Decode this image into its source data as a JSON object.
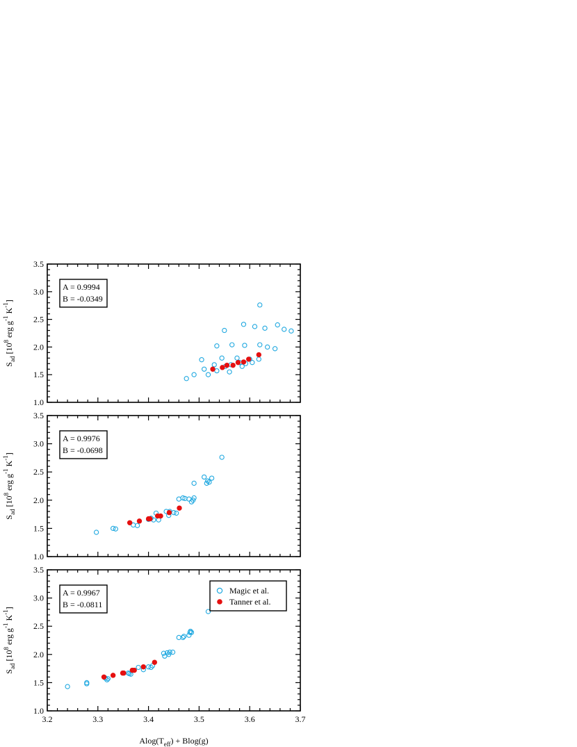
{
  "chart_data": [
    {
      "type": "scatter",
      "annotation": [
        "A =  0.9994",
        "B = -0.0349"
      ],
      "xlim": [
        3.2,
        3.7
      ],
      "ylim": [
        1.0,
        3.5
      ],
      "yticks": [
        "1.0",
        "1.5",
        "2.0",
        "2.5",
        "3.0",
        "3.5"
      ],
      "ylabel": {
        "base": "S",
        "sub": "ad",
        "rest": " [10",
        "sup1": "8",
        "rest2": " erg g",
        "sup2": "-1",
        "rest3": " K",
        "sup3": "-1",
        "close": "]"
      },
      "series": [
        {
          "name": "Magic et al.",
          "marker": "open-circle",
          "color": "#1fa8e0",
          "x": [
            3.475,
            3.49,
            3.505,
            3.51,
            3.518,
            3.53,
            3.535,
            3.535,
            3.545,
            3.55,
            3.552,
            3.56,
            3.563,
            3.565,
            3.575,
            3.58,
            3.585,
            3.588,
            3.59,
            3.592,
            3.6,
            3.605,
            3.61,
            3.618,
            3.62,
            3.62,
            3.63,
            3.635,
            3.65,
            3.655,
            3.668,
            3.682
          ],
          "y": [
            1.43,
            1.5,
            1.77,
            1.6,
            1.5,
            1.68,
            1.57,
            2.02,
            1.8,
            2.3,
            1.65,
            1.55,
            1.68,
            2.04,
            1.8,
            1.72,
            1.65,
            2.41,
            2.03,
            1.7,
            1.78,
            1.72,
            2.37,
            1.78,
            2.04,
            2.76,
            2.34,
            2.0,
            1.97,
            2.4,
            2.32,
            2.29
          ]
        },
        {
          "name": "Tanner et al.",
          "marker": "filled-circle",
          "color": "#e51010",
          "x": [
            3.527,
            3.546,
            3.555,
            3.567,
            3.577,
            3.588,
            3.598,
            3.618
          ],
          "y": [
            1.6,
            1.63,
            1.67,
            1.67,
            1.72,
            1.73,
            1.78,
            1.86
          ]
        }
      ]
    },
    {
      "type": "scatter",
      "annotation": [
        "A =  0.9976",
        "B = -0.0698"
      ],
      "xlim": [
        3.2,
        3.7
      ],
      "ylim": [
        1.0,
        3.5
      ],
      "yticks": [
        "1.0",
        "1.5",
        "2.0",
        "2.5",
        "3.0",
        "3.5"
      ],
      "ylabel": {
        "base": "S",
        "sub": "ad",
        "rest": " [10",
        "sup1": "8",
        "rest2": " erg g",
        "sup2": "-1",
        "rest3": " K",
        "sup3": "-1",
        "close": "]"
      },
      "series": [
        {
          "name": "Magic et al.",
          "marker": "open-circle",
          "color": "#1fa8e0",
          "x": [
            3.297,
            3.33,
            3.335,
            3.37,
            3.378,
            3.4,
            3.405,
            3.41,
            3.415,
            3.42,
            3.435,
            3.44,
            3.442,
            3.45,
            3.455,
            3.46,
            3.468,
            3.472,
            3.48,
            3.485,
            3.488,
            3.49,
            3.49,
            3.51,
            3.515,
            3.517,
            3.52,
            3.525,
            3.545
          ],
          "y": [
            1.43,
            1.5,
            1.49,
            1.56,
            1.55,
            1.66,
            1.68,
            1.65,
            1.77,
            1.65,
            1.8,
            1.73,
            1.8,
            1.78,
            1.77,
            2.02,
            2.04,
            2.03,
            2.02,
            1.97,
            2.0,
            2.04,
            2.3,
            2.41,
            2.3,
            2.34,
            2.32,
            2.39,
            2.76
          ]
        },
        {
          "name": "Tanner et al.",
          "marker": "filled-circle",
          "color": "#e51010",
          "x": [
            3.363,
            3.382,
            3.4,
            3.403,
            3.418,
            3.424,
            3.441,
            3.461
          ],
          "y": [
            1.6,
            1.63,
            1.67,
            1.67,
            1.72,
            1.72,
            1.78,
            1.86
          ]
        }
      ]
    },
    {
      "type": "scatter",
      "annotation": [
        "A =  0.9967",
        "B = -0.0811"
      ],
      "xlim": [
        3.2,
        3.7
      ],
      "ylim": [
        1.0,
        3.5
      ],
      "yticks": [
        "1.0",
        "1.5",
        "2.0",
        "2.5",
        "3.0",
        "3.5"
      ],
      "xticks": [
        "3.2",
        "3.3",
        "3.4",
        "3.5",
        "3.6",
        "3.7"
      ],
      "xlabel": {
        "p1": "Alog(T",
        "sub": "eff",
        "p2": ") + Blog(g)"
      },
      "ylabel": {
        "base": "S",
        "sub": "ad",
        "rest": " [10",
        "sup1": "8",
        "rest2": " erg g",
        "sup2": "-1",
        "rest3": " K",
        "sup3": "-1",
        "close": "]"
      },
      "legend": {
        "placement": "top-right",
        "entries": [
          "Magic et al.",
          "Tanner et al."
        ]
      },
      "series": [
        {
          "name": "Magic et al.",
          "marker": "open-circle",
          "color": "#1fa8e0",
          "x": [
            3.24,
            3.278,
            3.278,
            3.315,
            3.318,
            3.32,
            3.36,
            3.362,
            3.365,
            3.38,
            3.39,
            3.4,
            3.405,
            3.408,
            3.43,
            3.432,
            3.437,
            3.44,
            3.442,
            3.448,
            3.46,
            3.468,
            3.47,
            3.48,
            3.482,
            3.483,
            3.485,
            3.518
          ],
          "y": [
            1.43,
            1.48,
            1.5,
            1.58,
            1.55,
            1.57,
            1.67,
            1.66,
            1.65,
            1.77,
            1.73,
            1.78,
            1.77,
            1.8,
            2.02,
            1.97,
            2.03,
            2.0,
            2.04,
            2.04,
            2.3,
            2.3,
            2.32,
            2.34,
            2.39,
            2.41,
            2.39,
            2.76
          ]
        },
        {
          "name": "Tanner et al.",
          "marker": "filled-circle",
          "color": "#e51010",
          "x": [
            3.312,
            3.33,
            3.349,
            3.351,
            3.368,
            3.372,
            3.39,
            3.412
          ],
          "y": [
            1.6,
            1.63,
            1.67,
            1.67,
            1.72,
            1.72,
            1.78,
            1.86
          ]
        }
      ]
    }
  ]
}
